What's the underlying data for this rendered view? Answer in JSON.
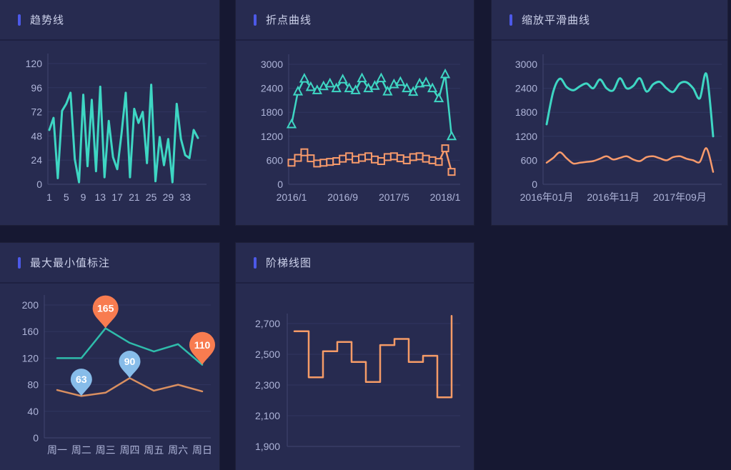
{
  "theme": {
    "page_bg": "#161832",
    "panel_bg": "#272b50",
    "header_divider": "#1e2142",
    "accent": "#4c59e8",
    "title_color": "#ccd1ea",
    "axis_text": "#aeb4d8",
    "grid_line": "#31365f",
    "axis_line": "#41466f",
    "teal": "#3ed6c3",
    "orange": "#f79a6b"
  },
  "panels": [
    {
      "id": "trend",
      "title": "趋势线"
    },
    {
      "id": "points",
      "title": "折点曲线"
    },
    {
      "id": "smooth",
      "title": "缩放平滑曲线"
    },
    {
      "id": "minmax",
      "title": "最大最小值标注"
    },
    {
      "id": "step",
      "title": "阶梯线图"
    }
  ],
  "chart_data": [
    {
      "id": "trend",
      "type": "line",
      "title": "趋势线",
      "ymin": 0,
      "ymax": 120,
      "yticks": [
        0,
        24,
        48,
        72,
        96,
        120
      ],
      "xticks": [
        {
          "label": "1",
          "index": 0
        },
        {
          "label": "5",
          "index": 4
        },
        {
          "label": "9",
          "index": 8
        },
        {
          "label": "13",
          "index": 12
        },
        {
          "label": "17",
          "index": 16
        },
        {
          "label": "21",
          "index": 20
        },
        {
          "label": "25",
          "index": 24
        },
        {
          "label": "29",
          "index": 28
        },
        {
          "label": "33",
          "index": 32
        }
      ],
      "grid": true,
      "series": [
        {
          "name": "teal-trend-line",
          "color": "#3ed6c3",
          "width": 3,
          "style": "linear",
          "values": [
            54,
            66,
            6,
            73,
            80,
            91,
            25,
            2,
            89,
            18,
            84,
            13,
            97,
            7,
            63,
            27,
            15,
            50,
            91,
            7,
            75,
            61,
            72,
            21,
            99,
            3,
            47,
            19,
            45,
            2,
            80,
            45,
            29,
            26,
            54,
            46
          ]
        }
      ]
    },
    {
      "id": "points",
      "type": "line",
      "title": "折点曲线",
      "ymin": 0,
      "ymax": 3000,
      "yticks": [
        0,
        600,
        1200,
        1800,
        2400,
        3000
      ],
      "xticks": [
        {
          "label": "2016/1",
          "index": 0
        },
        {
          "label": "2016/9",
          "index": 8
        },
        {
          "label": "2017/5",
          "index": 16
        },
        {
          "label": "2018/1",
          "index": 24
        }
      ],
      "grid": true,
      "series": [
        {
          "name": "teal-marker-line",
          "color": "#3ed6c3",
          "width": 2.5,
          "style": "linear",
          "marker": "triangle",
          "values": [
            1500,
            2320,
            2640,
            2430,
            2350,
            2450,
            2520,
            2400,
            2620,
            2400,
            2350,
            2650,
            2400,
            2460,
            2650,
            2320,
            2500,
            2560,
            2400,
            2310,
            2520,
            2550,
            2400,
            2150,
            2750,
            1200
          ]
        },
        {
          "name": "orange-marker-line",
          "color": "#f79a6b",
          "width": 2.5,
          "style": "linear",
          "marker": "square",
          "values": [
            540,
            660,
            800,
            650,
            520,
            540,
            560,
            580,
            640,
            700,
            620,
            660,
            700,
            620,
            580,
            680,
            700,
            650,
            600,
            680,
            700,
            640,
            600,
            560,
            900,
            310
          ]
        }
      ]
    },
    {
      "id": "smooth",
      "type": "line",
      "title": "缩放平滑曲线",
      "ymin": 0,
      "ymax": 3000,
      "yticks": [
        0,
        600,
        1200,
        1800,
        2400,
        3000
      ],
      "xticks": [
        {
          "label": "2016年01月",
          "index": 0
        },
        {
          "label": "2016年11月",
          "index": 10
        },
        {
          "label": "2017年09月",
          "index": 20
        }
      ],
      "grid": true,
      "series": [
        {
          "name": "teal-smooth-line",
          "color": "#3ed6c3",
          "width": 3,
          "style": "smooth",
          "values": [
            1500,
            2320,
            2640,
            2430,
            2350,
            2450,
            2520,
            2400,
            2620,
            2400,
            2350,
            2650,
            2400,
            2460,
            2650,
            2320,
            2500,
            2560,
            2400,
            2310,
            2520,
            2550,
            2400,
            2150,
            2750,
            1200
          ]
        },
        {
          "name": "orange-smooth-line",
          "color": "#f79a6b",
          "width": 2.5,
          "style": "smooth",
          "values": [
            540,
            660,
            800,
            650,
            520,
            540,
            560,
            580,
            640,
            700,
            620,
            660,
            700,
            620,
            580,
            680,
            700,
            650,
            600,
            680,
            700,
            640,
            600,
            560,
            900,
            310
          ]
        }
      ]
    },
    {
      "id": "minmax",
      "type": "line",
      "title": "最大最小值标注",
      "ymin": 0,
      "ymax": 200,
      "yticks": [
        0,
        40,
        80,
        120,
        160,
        200
      ],
      "categories": [
        "周一",
        "周二",
        "周三",
        "周四",
        "周五",
        "周六",
        "周日"
      ],
      "xticks": [
        {
          "label": "周一",
          "index": 0
        },
        {
          "label": "周二",
          "index": 1
        },
        {
          "label": "周三",
          "index": 2
        },
        {
          "label": "周四",
          "index": 3
        },
        {
          "label": "周五",
          "index": 4
        },
        {
          "label": "周六",
          "index": 5
        },
        {
          "label": "周日",
          "index": 6
        }
      ],
      "grid": true,
      "series": [
        {
          "name": "teal-week-line",
          "color": "#2fbcab",
          "width": 2.5,
          "style": "linear",
          "values": [
            120,
            120,
            165,
            143,
            130,
            141,
            110
          ]
        },
        {
          "name": "orange-week-line",
          "color": "#d98f60",
          "width": 2.5,
          "style": "linear",
          "values": [
            72,
            63,
            68,
            90,
            71,
            80,
            70
          ]
        }
      ],
      "annotations": [
        {
          "kind": "max-pin",
          "series": 0,
          "index": 2,
          "label": "165",
          "color": "#f87c50",
          "r": 18
        },
        {
          "kind": "min-pin",
          "series": 0,
          "index": 6,
          "label": "110",
          "color": "#f87c50",
          "r": 18
        },
        {
          "kind": "min-pin",
          "series": 1,
          "index": 1,
          "label": "63",
          "color": "#87bce9",
          "r": 15
        },
        {
          "kind": "max-pin",
          "series": 1,
          "index": 3,
          "label": "90",
          "color": "#87bce9",
          "r": 15
        }
      ]
    },
    {
      "id": "step",
      "type": "line",
      "title": "阶梯线图",
      "ymin": 1900,
      "ymax": 2700,
      "yticks": [
        1900,
        2100,
        2300,
        2500,
        2700
      ],
      "ytick_labels": [
        "1,900",
        "2,100",
        "2,300",
        "2,500",
        "2,700"
      ],
      "xticks": [],
      "grid": true,
      "series": [
        {
          "name": "orange-step-line",
          "color": "#f59b67",
          "width": 2.5,
          "style": "step",
          "values": [
            2650,
            2350,
            2520,
            2580,
            2450,
            2320,
            2560,
            2600,
            2450,
            2490,
            2220,
            2750
          ]
        }
      ]
    }
  ]
}
